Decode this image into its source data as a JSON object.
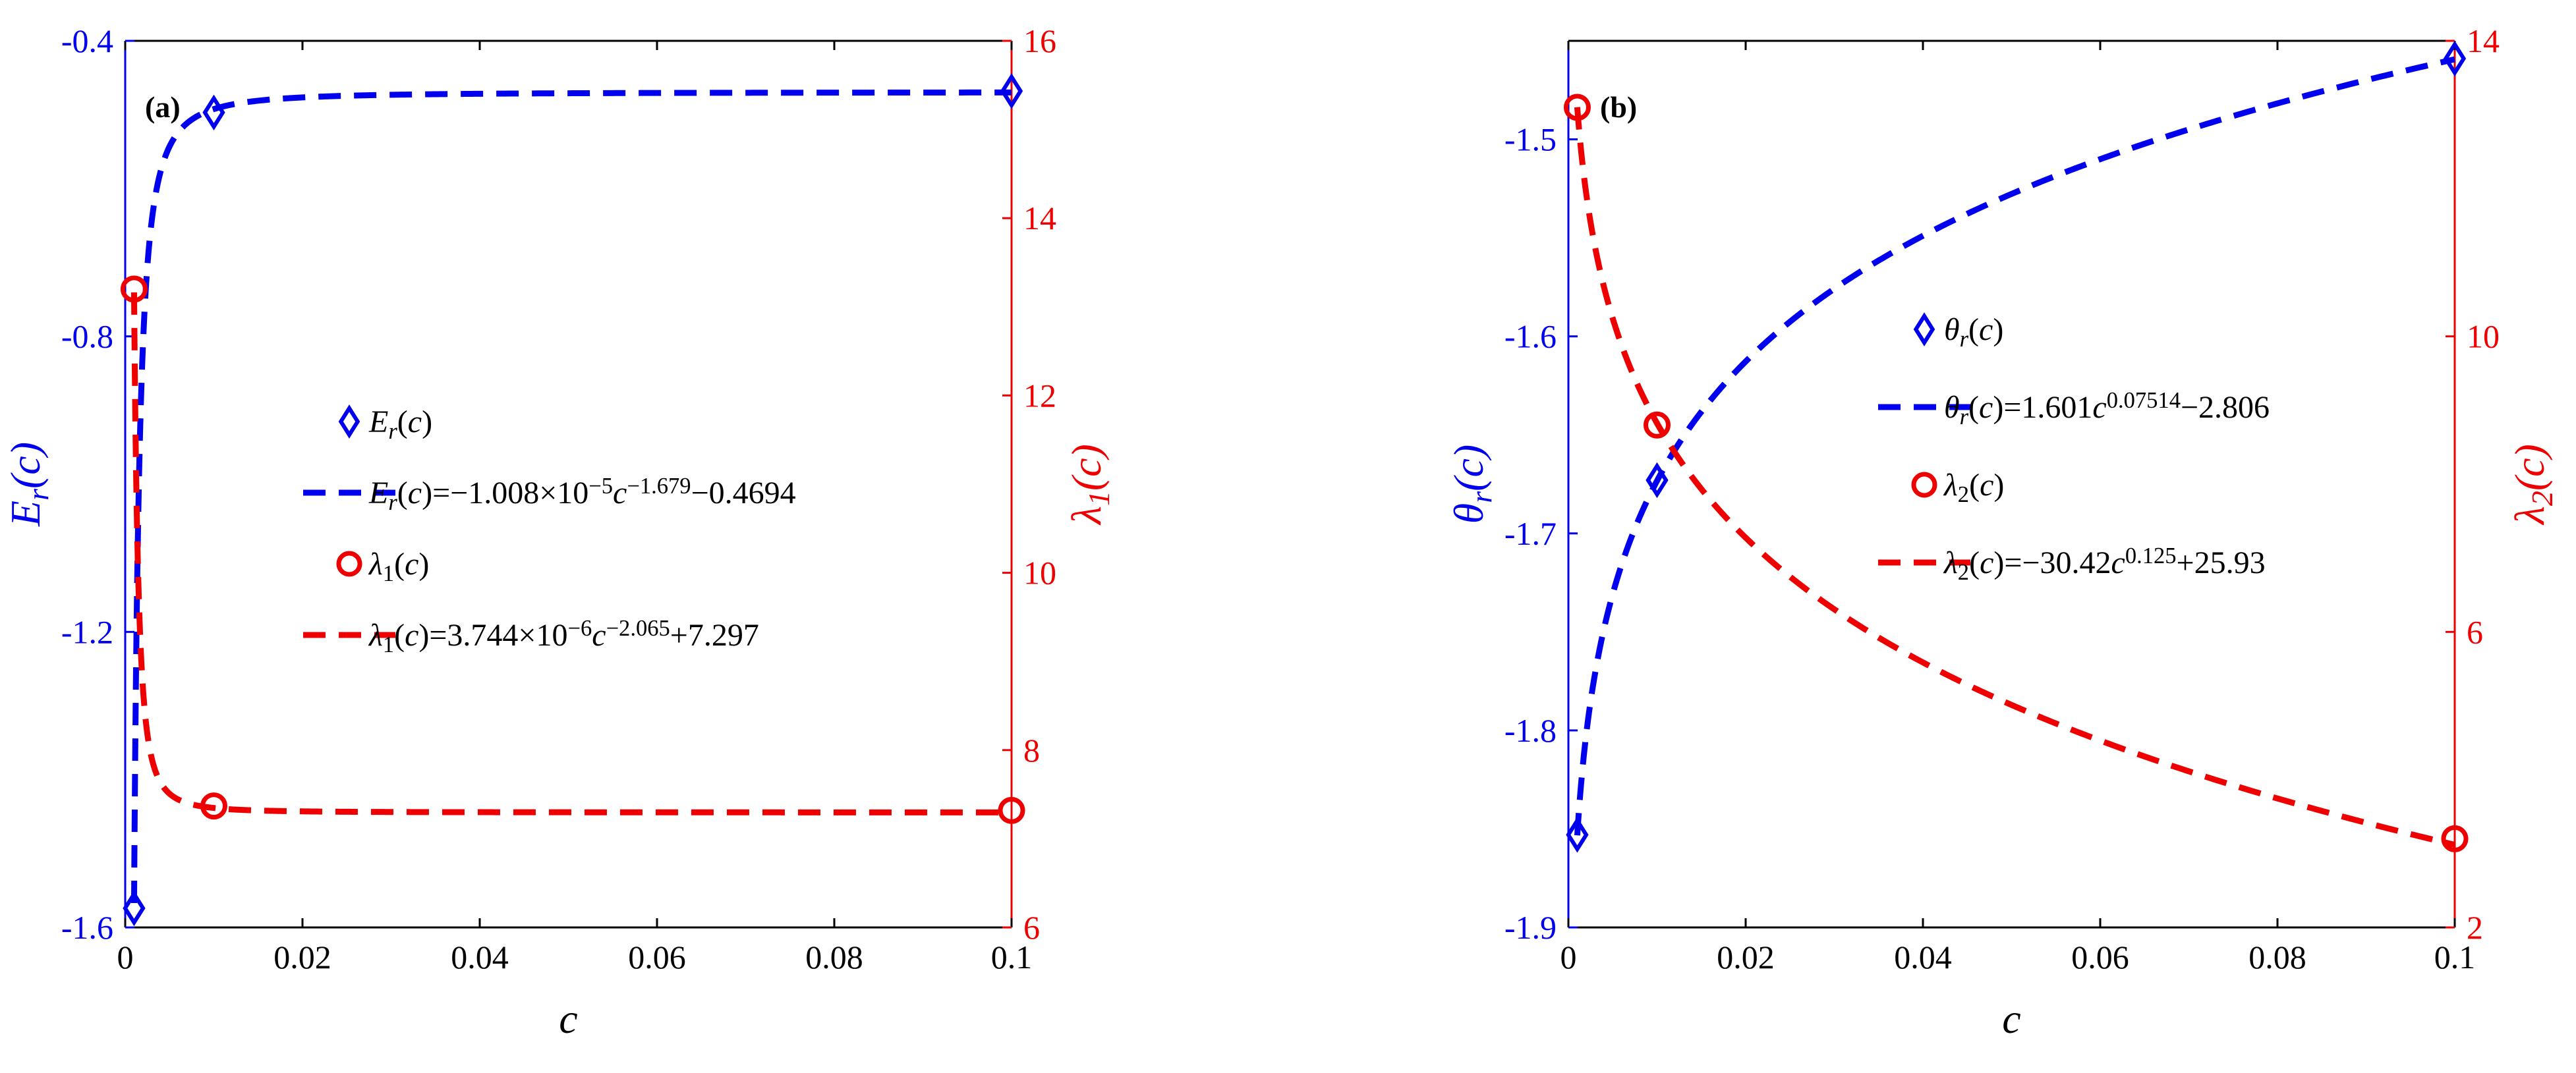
{
  "chart_data": [
    {
      "type": "scatter",
      "panel_label": "(a)",
      "x": [
        0.001,
        0.01,
        0.1
      ],
      "xlim": [
        0,
        0.1
      ],
      "xticks": [
        "0",
        "0.02",
        "0.04",
        "0.06",
        "0.08",
        "0.1"
      ],
      "xlabel": "c",
      "y_left": {
        "label_base": "E",
        "label_sub": "r",
        "label_tail": "(c)",
        "ylim": [
          -1.6,
          -0.4
        ],
        "ticks": [
          "-0.4",
          "-0.8",
          "-1.2",
          "-1.6"
        ],
        "color": "#0000ee"
      },
      "y_right": {
        "label_base": "λ",
        "label_sub": "1",
        "label_tail": "(c)",
        "ylim": [
          6,
          16
        ],
        "ticks": [
          "6",
          "8",
          "10",
          "12",
          "14",
          "16"
        ],
        "color": "#ee0000"
      },
      "series": [
        {
          "name": "E_r(c)",
          "axis": "left",
          "marker": "diamond",
          "color": "#0000ee",
          "x": [
            0.001,
            0.01,
            0.1
          ],
          "values": [
            -1.574,
            -0.497,
            -0.468
          ]
        },
        {
          "name": "λ_1(c)",
          "axis": "right",
          "marker": "circle",
          "color": "#ee0000",
          "x": [
            0.001,
            0.01,
            0.1
          ],
          "values": [
            13.2,
            7.37,
            7.32
          ]
        }
      ],
      "fits": [
        {
          "axis": "left",
          "color": "#0000ee",
          "form": "power",
          "a": -1.008e-05,
          "b": -1.679,
          "c": -0.4694
        },
        {
          "axis": "right",
          "color": "#ee0000",
          "form": "power",
          "a": 3.744e-06,
          "b": -2.065,
          "c": 7.297
        }
      ],
      "legend_position": "center-right",
      "legend": [
        {
          "kind": "diamond",
          "color": "#0000ee",
          "parts": [
            {
              "t": "E",
              "i": true
            },
            {
              "t": "r",
              "sub": true,
              "i": true
            },
            {
              "t": "(",
              "i": false
            },
            {
              "t": "c",
              "i": true
            },
            {
              "t": ")",
              "i": false
            }
          ]
        },
        {
          "kind": "dash",
          "color": "#0000ee",
          "parts": [
            {
              "t": "E",
              "i": true
            },
            {
              "t": "r",
              "sub": true,
              "i": true
            },
            {
              "t": "(",
              "i": false
            },
            {
              "t": "c",
              "i": true
            },
            {
              "t": ")=−1.008×10",
              "i": false
            },
            {
              "t": "−5",
              "sup": true
            },
            {
              "t": "c",
              "i": true
            },
            {
              "t": "−1.679",
              "sup": true
            },
            {
              "t": "−0.4694",
              "i": false
            }
          ]
        },
        {
          "kind": "circle",
          "color": "#ee0000",
          "parts": [
            {
              "t": "λ",
              "i": true
            },
            {
              "t": "1",
              "sub": true
            },
            {
              "t": "(",
              "i": false
            },
            {
              "t": "c",
              "i": true
            },
            {
              "t": ")",
              "i": false
            }
          ]
        },
        {
          "kind": "dash",
          "color": "#ee0000",
          "parts": [
            {
              "t": "λ",
              "i": true
            },
            {
              "t": "1",
              "sub": true
            },
            {
              "t": "(",
              "i": false
            },
            {
              "t": "c",
              "i": true
            },
            {
              "t": ")=3.744×10",
              "i": false
            },
            {
              "t": "−6",
              "sup": true
            },
            {
              "t": "c",
              "i": true
            },
            {
              "t": "−2.065",
              "sup": true
            },
            {
              "t": "+7.297",
              "i": false
            }
          ]
        }
      ]
    },
    {
      "type": "scatter",
      "panel_label": "(b)",
      "x": [
        0.001,
        0.01,
        0.1
      ],
      "xlim": [
        0,
        0.1
      ],
      "xticks": [
        "0",
        "0.02",
        "0.04",
        "0.06",
        "0.08",
        "0.1"
      ],
      "xlabel": "c",
      "y_left": {
        "label_base": "θ",
        "label_sub": "r",
        "label_tail": "(c)",
        "ylim": [
          -1.9,
          -1.45
        ],
        "ticks": [
          "-1.5",
          "-1.6",
          "-1.7",
          "-1.8",
          "-1.9"
        ],
        "tick_values": [
          -1.5,
          -1.6,
          -1.7,
          -1.8,
          -1.9
        ],
        "color": "#0000ee"
      },
      "y_right": {
        "label_base": "λ",
        "label_sub": "2",
        "label_tail": "(c)",
        "ylim": [
          2,
          14
        ],
        "ticks": [
          "2",
          "6",
          "10",
          "14"
        ],
        "color": "#ee0000"
      },
      "series": [
        {
          "name": "θ_r(c)",
          "axis": "left",
          "marker": "diamond",
          "color": "#0000ee",
          "x": [
            0.001,
            0.01,
            0.1
          ],
          "values": [
            -1.853,
            -1.673,
            -1.459
          ]
        },
        {
          "name": "λ_2(c)",
          "axis": "right",
          "marker": "circle",
          "color": "#ee0000",
          "x": [
            0.001,
            0.01,
            0.1
          ],
          "values": [
            13.1,
            8.8,
            3.2
          ]
        }
      ],
      "fits": [
        {
          "axis": "left",
          "color": "#0000ee",
          "form": "power",
          "a": 1.601,
          "b": 0.07514,
          "c": -2.806
        },
        {
          "axis": "right",
          "color": "#ee0000",
          "form": "power",
          "a": -30.42,
          "b": 0.125,
          "c": 25.93
        }
      ],
      "legend_position": "center",
      "legend": [
        {
          "kind": "diamond",
          "color": "#0000ee",
          "parts": [
            {
              "t": "θ",
              "i": true
            },
            {
              "t": "r",
              "sub": true,
              "i": true
            },
            {
              "t": "(",
              "i": false
            },
            {
              "t": "c",
              "i": true
            },
            {
              "t": ")",
              "i": false
            }
          ]
        },
        {
          "kind": "dash",
          "color": "#0000ee",
          "parts": [
            {
              "t": "θ",
              "i": true
            },
            {
              "t": "r",
              "sub": true,
              "i": true
            },
            {
              "t": "(",
              "i": false
            },
            {
              "t": "c",
              "i": true
            },
            {
              "t": ")=1.601",
              "i": false
            },
            {
              "t": "c",
              "i": true
            },
            {
              "t": "0.07514",
              "sup": true
            },
            {
              "t": "−2.806",
              "i": false
            }
          ]
        },
        {
          "kind": "circle",
          "color": "#ee0000",
          "parts": [
            {
              "t": "λ",
              "i": true
            },
            {
              "t": "2",
              "sub": true
            },
            {
              "t": "(",
              "i": false
            },
            {
              "t": "c",
              "i": true
            },
            {
              "t": ")",
              "i": false
            }
          ]
        },
        {
          "kind": "dash",
          "color": "#ee0000",
          "parts": [
            {
              "t": "λ",
              "i": true
            },
            {
              "t": "2",
              "sub": true
            },
            {
              "t": "(",
              "i": false
            },
            {
              "t": "c",
              "i": true
            },
            {
              "t": ")=−30.42",
              "i": false
            },
            {
              "t": "c",
              "i": true
            },
            {
              "t": "0.125",
              "sup": true
            },
            {
              "t": "+25.93",
              "i": false
            }
          ]
        }
      ]
    }
  ]
}
